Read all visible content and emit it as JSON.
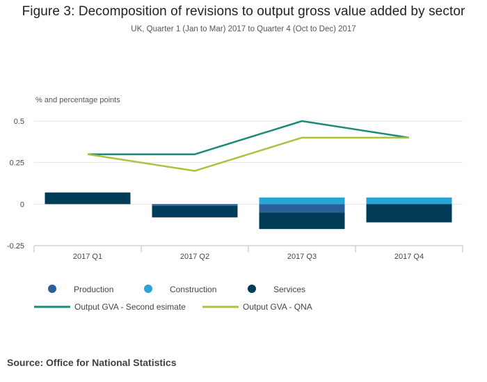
{
  "title": "Figure 3: Decomposition of revisions to output gross value added by sector",
  "subtitle": "UK, Quarter 1 (Jan to Mar) 2017 to Quarter 4 (Oct to Dec) 2017",
  "source": "Source: Office for National Statistics",
  "chart_data": {
    "type": "bar",
    "stacked": true,
    "ylabel": "% and percentage points",
    "ylim": [
      -0.25,
      0.5
    ],
    "yticks": [
      0.5,
      0.25,
      0,
      -0.25
    ],
    "ytick_labels": [
      "0.5",
      "0.25",
      "0",
      "-0.25"
    ],
    "grid": true,
    "categories": [
      "2017 Q1",
      "2017 Q2",
      "2017 Q3",
      "2017 Q4"
    ],
    "bar_series": [
      {
        "name": "Production",
        "color": "#27609a",
        "values": [
          0.0,
          -0.01,
          -0.05,
          0.0
        ]
      },
      {
        "name": "Construction",
        "color": "#2aa3d5",
        "values": [
          0.0,
          0.0,
          0.04,
          0.04
        ]
      },
      {
        "name": "Services",
        "color": "#003c57",
        "values": [
          0.07,
          -0.07,
          -0.1,
          -0.11
        ]
      }
    ],
    "line_series": [
      {
        "name": "Output GVA - Second esimate",
        "color": "#1b8b76",
        "values": [
          0.3,
          0.3,
          0.5,
          0.4
        ]
      },
      {
        "name": "Output GVA - QNA",
        "color": "#a8c43f",
        "values": [
          0.3,
          0.2,
          0.4,
          0.4
        ]
      }
    ],
    "legend_position": "bottom"
  }
}
